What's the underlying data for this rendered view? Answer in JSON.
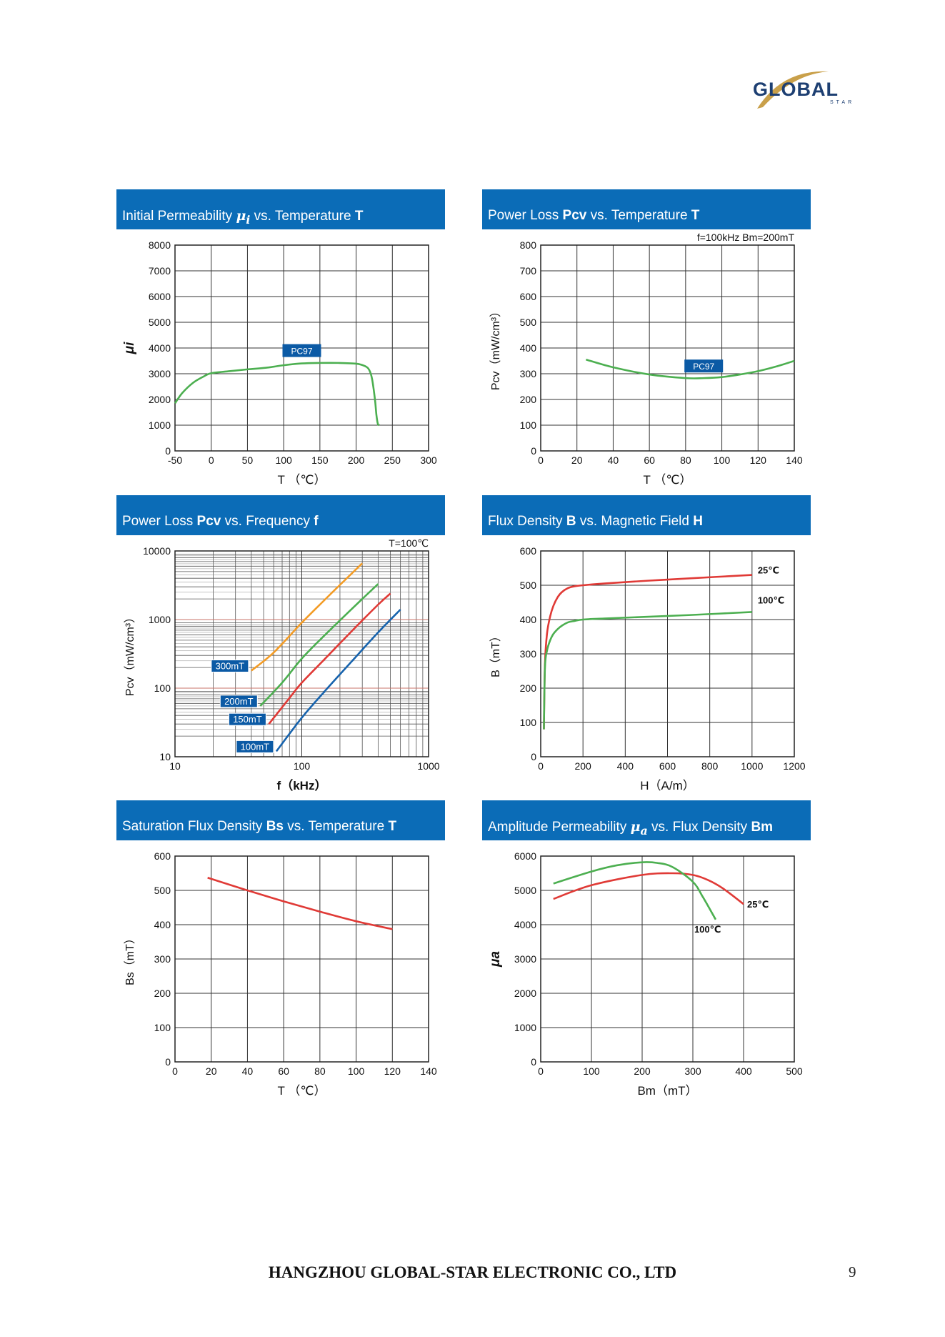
{
  "logo": {
    "text": "GLOBAL",
    "sub": "STAR"
  },
  "footer": {
    "company": "HANGZHOU GLOBAL-STAR ELECTRONIC CO., LTD",
    "page": "9"
  },
  "colors": {
    "header": "#0b6cb7",
    "green": "#4caf50",
    "red": "#e03a36",
    "orange": "#f39c26",
    "blue": "#1763ad",
    "badge": "#0b5aa5"
  },
  "chart_data": [
    {
      "id": "ui-vs-t",
      "type": "line",
      "title_parts": [
        "Initial Permeability ",
        "μ",
        "i",
        " vs. Temperature ",
        "T"
      ],
      "xlabel": "T （℃）",
      "ylabel": "μi",
      "xlim": [
        -50,
        300
      ],
      "ylim": [
        0,
        8000
      ],
      "xticks": [
        -50,
        0,
        50,
        100,
        150,
        200,
        250,
        300
      ],
      "yticks": [
        0,
        1000,
        2000,
        3000,
        4000,
        5000,
        6000,
        7000,
        8000
      ],
      "xscale": "linear",
      "yscale": "linear",
      "grid": true,
      "series": [
        {
          "name": "PC97",
          "color": "#4caf50",
          "x": [
            -50,
            -40,
            -25,
            -10,
            0,
            25,
            50,
            75,
            100,
            125,
            150,
            175,
            200,
            212,
            218,
            222,
            226,
            228,
            230,
            232
          ],
          "y": [
            1850,
            2250,
            2650,
            2900,
            3020,
            3100,
            3170,
            3230,
            3330,
            3400,
            3420,
            3420,
            3390,
            3300,
            3150,
            2800,
            2000,
            1400,
            1050,
            1000
          ]
        }
      ],
      "annotations": [
        {
          "text": "PC97",
          "x": 125,
          "y": 3900
        }
      ]
    },
    {
      "id": "pcv-vs-t",
      "type": "line",
      "title_parts": [
        "Power Loss ",
        "Pcv",
        "",
        " vs. Temperature ",
        "T"
      ],
      "note": "f=100kHz    Bm=200mT",
      "xlabel": "T （℃）",
      "ylabel": "Pcv（mW/cm³）",
      "xlim": [
        0,
        140
      ],
      "ylim": [
        0,
        800
      ],
      "xticks": [
        0,
        20,
        40,
        60,
        80,
        100,
        120,
        140
      ],
      "yticks": [
        0,
        100,
        200,
        300,
        400,
        500,
        600,
        700,
        800
      ],
      "xscale": "linear",
      "yscale": "linear",
      "grid": true,
      "series": [
        {
          "name": "PC97",
          "color": "#4caf50",
          "x": [
            25,
            40,
            60,
            80,
            90,
            100,
            110,
            120,
            130,
            140
          ],
          "y": [
            355,
            325,
            297,
            283,
            283,
            287,
            297,
            310,
            328,
            350
          ]
        }
      ],
      "annotations": [
        {
          "text": "PC97",
          "x": 90,
          "y": 330
        }
      ]
    },
    {
      "id": "pcv-vs-f",
      "type": "line",
      "title_parts": [
        "Power Loss ",
        "Pcv",
        "",
        " vs. Frequency ",
        "f"
      ],
      "note": "T=100℃",
      "xlabel": "f（kHz）",
      "ylabel": "Pcv（mW/cm³）",
      "xlim": [
        10,
        1000
      ],
      "ylim": [
        10,
        10000
      ],
      "xticks": [
        10,
        100,
        1000
      ],
      "yticks": [
        10,
        100,
        1000,
        10000
      ],
      "xscale": "log",
      "yscale": "log",
      "grid": true,
      "series": [
        {
          "name": "300mT",
          "color": "#f39c26",
          "x": [
            40,
            60,
            100,
            150,
            200,
            300
          ],
          "y": [
            180,
            330,
            900,
            1900,
            3200,
            6600
          ]
        },
        {
          "name": "200mT",
          "color": "#4caf50",
          "x": [
            47,
            70,
            100,
            150,
            250,
            400
          ],
          "y": [
            55,
            120,
            270,
            580,
            1450,
            3300
          ]
        },
        {
          "name": "150mT",
          "color": "#e03a36",
          "x": [
            55,
            80,
            100,
            150,
            250,
            400,
            500
          ],
          "y": [
            30,
            72,
            120,
            260,
            690,
            1650,
            2400
          ]
        },
        {
          "name": "100mT",
          "color": "#1763ad",
          "x": [
            63,
            100,
            150,
            250,
            400,
            600
          ],
          "y": [
            12,
            37,
            88,
            250,
            650,
            1400
          ]
        }
      ]
    },
    {
      "id": "b-vs-h",
      "type": "line",
      "title_parts": [
        "Flux Density ",
        "B",
        "",
        " vs. Magnetic Field ",
        "H"
      ],
      "xlabel": "H（A/m）",
      "ylabel": "B（mT）",
      "xlim": [
        0,
        1200
      ],
      "ylim": [
        0,
        600
      ],
      "xticks": [
        0,
        200,
        400,
        600,
        800,
        1000,
        1200
      ],
      "yticks": [
        0,
        100,
        200,
        300,
        400,
        500,
        600
      ],
      "xscale": "linear",
      "yscale": "linear",
      "grid": true,
      "series": [
        {
          "name": "25℃",
          "color": "#e03a36",
          "x": [
            15,
            20,
            30,
            45,
            60,
            80,
            100,
            130,
            160,
            200,
            300,
            500,
            700,
            1000
          ],
          "y": [
            80,
            270,
            360,
            410,
            440,
            465,
            480,
            492,
            497,
            500,
            505,
            513,
            520,
            530
          ]
        },
        {
          "name": "100℃",
          "color": "#4caf50",
          "x": [
            15,
            20,
            30,
            45,
            60,
            80,
            100,
            130,
            160,
            200,
            300,
            500,
            700,
            1000
          ],
          "y": [
            80,
            260,
            310,
            340,
            358,
            372,
            382,
            392,
            396,
            400,
            403,
            408,
            413,
            422
          ]
        }
      ]
    },
    {
      "id": "bs-vs-t",
      "type": "line",
      "title_parts": [
        "Saturation Flux Density ",
        "Bs",
        "",
        " vs. Temperature ",
        "T"
      ],
      "xlabel": "T （℃）",
      "ylabel": "Bs（mT）",
      "xlim": [
        0,
        140
      ],
      "ylim": [
        0,
        600
      ],
      "xticks": [
        0,
        20,
        40,
        60,
        80,
        100,
        120,
        140
      ],
      "yticks": [
        0,
        100,
        200,
        300,
        400,
        500,
        600
      ],
      "xscale": "linear",
      "yscale": "linear",
      "grid": true,
      "series": [
        {
          "name": "",
          "color": "#e03a36",
          "x": [
            18,
            40,
            60,
            80,
            100,
            120
          ],
          "y": [
            537,
            500,
            468,
            438,
            410,
            387
          ]
        }
      ]
    },
    {
      "id": "ua-vs-bm",
      "type": "line",
      "title_parts": [
        "Amplitude Permeability ",
        "μ",
        "a",
        " vs. Flux Density ",
        "Bm"
      ],
      "xlabel": "Bm（mT）",
      "ylabel": "μa",
      "xlim": [
        0,
        500
      ],
      "ylim": [
        0,
        6000
      ],
      "xticks": [
        0,
        100,
        200,
        300,
        400,
        500
      ],
      "yticks": [
        0,
        1000,
        2000,
        3000,
        4000,
        5000,
        6000
      ],
      "xscale": "linear",
      "yscale": "linear",
      "grid": true,
      "series": [
        {
          "name": "25℃",
          "color": "#e03a36",
          "x": [
            25,
            100,
            200,
            260,
            300,
            330,
            360,
            400
          ],
          "y": [
            4750,
            5150,
            5450,
            5500,
            5450,
            5300,
            5050,
            4600
          ]
        },
        {
          "name": "100℃",
          "color": "#4caf50",
          "x": [
            25,
            100,
            150,
            200,
            230,
            260,
            300,
            320,
            345
          ],
          "y": [
            5200,
            5550,
            5730,
            5820,
            5800,
            5680,
            5250,
            4800,
            4150
          ]
        }
      ]
    }
  ]
}
